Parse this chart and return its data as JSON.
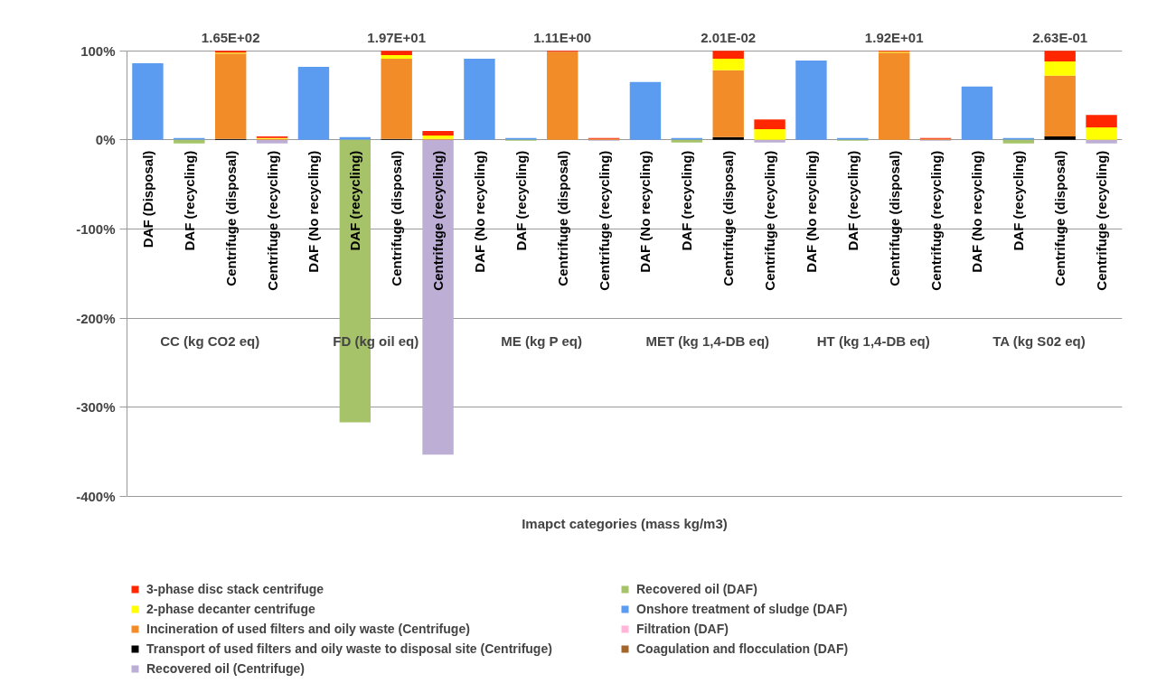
{
  "chart_data": {
    "type": "bar",
    "stacked": true,
    "categories": [
      "DAF (Disposal)",
      "DAF (recycling)",
      "Centrifuge (disposal)",
      "Centrifuge (recycling)",
      "DAF (No recycling)",
      "DAF (recycling)",
      "Centrifuge (disposal)",
      "Centrifuge (recycling)",
      "DAF (No recycling)",
      "DAF (recycling)",
      "Centrifuge (disposal)",
      "Centrifuge (recycling)",
      "DAF (No recycling)",
      "DAF (recycling)",
      "Centrifuge (disposal)",
      "Centrifuge (recycling)",
      "DAF (No recycling)",
      "DAF (recycling)",
      "Centrifuge (disposal)",
      "Centrifuge (recycling)",
      "DAF (No recycling)",
      "DAF (recycling)",
      "Centrifuge (disposal)",
      "Centrifuge (recycling)"
    ],
    "series": [
      {
        "name": "Coagulation and flocculation (DAF)",
        "color": "#a0662c",
        "values": [
          null,
          null,
          null,
          null,
          null,
          null,
          null,
          null,
          null,
          null,
          null,
          null,
          null,
          null,
          null,
          null,
          null,
          null,
          null,
          null,
          null,
          null,
          null,
          null
        ]
      },
      {
        "name": "Filtration (DAF)",
        "color": "#ffb6d9",
        "values": [
          null,
          null,
          null,
          null,
          null,
          null,
          null,
          null,
          null,
          null,
          null,
          null,
          null,
          null,
          null,
          null,
          null,
          null,
          null,
          null,
          null,
          null,
          null,
          null
        ]
      },
      {
        "name": "Onshore treatment of sludge (DAF)",
        "color": "#5b9bf0",
        "values": [
          86,
          2,
          null,
          null,
          82,
          3,
          null,
          null,
          91,
          2,
          null,
          null,
          65,
          2,
          null,
          null,
          89,
          2,
          null,
          null,
          60,
          2,
          null,
          null
        ]
      },
      {
        "name": "Recovered oil (DAF)",
        "color": "#a6c36a",
        "values": [
          null,
          -4,
          null,
          null,
          null,
          -317,
          null,
          null,
          null,
          -1,
          null,
          null,
          null,
          -3,
          null,
          null,
          null,
          -1,
          null,
          null,
          null,
          -4,
          null,
          null
        ]
      },
      {
        "name": "Recovered oil (Centrifuge)",
        "color": "#bcaed4",
        "values": [
          null,
          null,
          null,
          -4,
          null,
          null,
          null,
          -353,
          null,
          null,
          null,
          -1,
          null,
          null,
          null,
          -3,
          null,
          null,
          null,
          -1,
          null,
          null,
          null,
          -4
        ]
      },
      {
        "name": "Transport of used filters and oily waste to disposal site (Centrifuge)",
        "color": "#000000",
        "values": [
          null,
          null,
          1,
          null,
          null,
          null,
          1,
          null,
          null,
          null,
          null,
          null,
          null,
          null,
          3,
          null,
          null,
          null,
          null,
          null,
          null,
          null,
          4,
          null
        ]
      },
      {
        "name": "Incineration of used filters and oily waste (Centrifuge)",
        "color": "#f28c28",
        "values": [
          null,
          null,
          96,
          1,
          null,
          null,
          90,
          1,
          null,
          null,
          99,
          1,
          null,
          null,
          75,
          null,
          null,
          null,
          98,
          1,
          null,
          null,
          68,
          null
        ]
      },
      {
        "name": "2-phase decanter centrifuge",
        "color": "#ffff00",
        "values": [
          null,
          null,
          1,
          1,
          null,
          null,
          4,
          4,
          null,
          null,
          null,
          null,
          null,
          null,
          13,
          12,
          null,
          null,
          1,
          null,
          null,
          null,
          16,
          14
        ]
      },
      {
        "name": "3-phase disc stack centrifuge",
        "color": "#ff2600",
        "values": [
          null,
          null,
          2,
          2,
          null,
          null,
          5,
          5,
          null,
          null,
          1,
          1,
          null,
          null,
          9,
          11,
          null,
          null,
          1,
          1,
          null,
          null,
          12,
          14
        ]
      }
    ],
    "xlabel": "Imapct categories (mass kg/m3)",
    "annotations": [
      "CC (kg CO2 eq)",
      "FD (kg oil eq)",
      "ME (kg P eq)",
      "MET (kg 1,4-DB eq)",
      "HT (kg 1,4-DB eq)",
      "TA (kg S02 eq)",
      "1.65E+02",
      "1.97E+01",
      "1.11E+00",
      "2.01E-02",
      "1.92E+01",
      "2.63E-01"
    ],
    "ylim": [
      -400,
      100
    ],
    "yticks": [
      {
        "value": -400,
        "label": "-400%"
      },
      {
        "value": -300,
        "label": "-300%"
      },
      {
        "value": -200,
        "label": "-200%"
      },
      {
        "value": -100,
        "label": "-100%"
      },
      {
        "value": 0,
        "label": "0%"
      },
      {
        "value": 100,
        "label": "100%"
      }
    ],
    "grid": "y",
    "legend": "bottom"
  }
}
